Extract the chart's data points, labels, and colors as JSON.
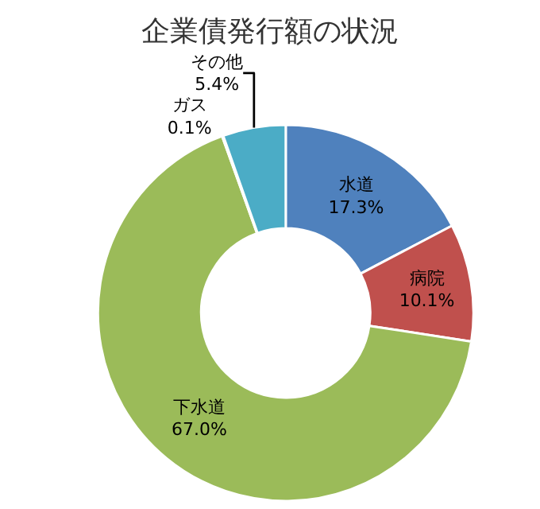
{
  "chart_data": {
    "type": "donut",
    "title": "企業債発行額の状況",
    "categories": [
      "水道",
      "病院",
      "下水道",
      "ガス",
      "その他"
    ],
    "values": [
      17.3,
      10.1,
      67.0,
      0.1,
      5.4
    ],
    "value_labels": [
      "17.3%",
      "10.1%",
      "67.0%",
      "0.1%",
      "5.4%"
    ],
    "colors": [
      "#4f81bd",
      "#c0504d",
      "#9bbb59",
      "#8064a2",
      "#4bacc6"
    ],
    "legend": false
  }
}
